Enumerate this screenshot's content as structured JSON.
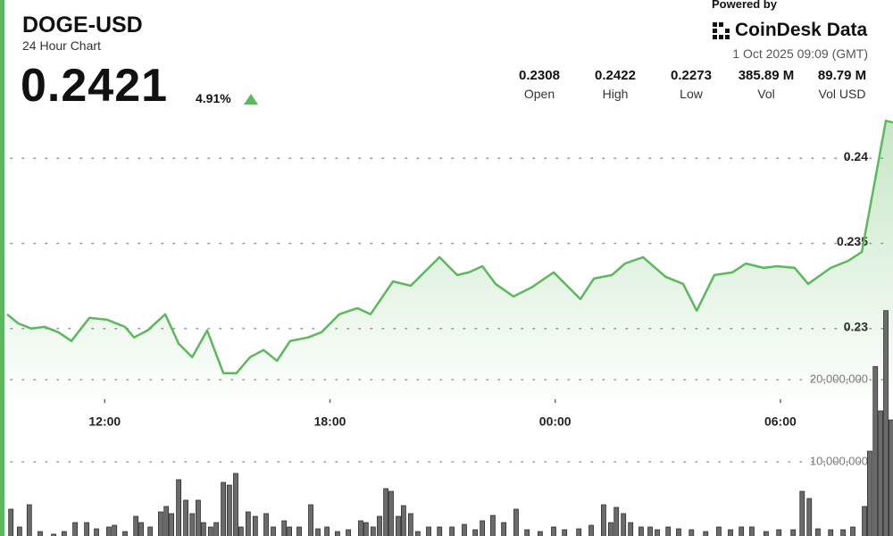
{
  "header": {
    "symbol": "DOGE-USD",
    "subtitle": "24 Hour Chart",
    "price": "0.2421",
    "change": "4.91%",
    "powered_by": "Powered by",
    "brand": "CoinDesk Data",
    "timestamp": "1 Oct 2025 09:09 (GMT)",
    "stats": [
      {
        "value": "0.2308",
        "label": "Open"
      },
      {
        "value": "0.2422",
        "label": "High"
      },
      {
        "value": "0.2273",
        "label": "Low"
      },
      {
        "value": "385.89 M",
        "label": "Vol"
      },
      {
        "value": "89.79 M",
        "label": "Vol USD"
      }
    ]
  },
  "chart_data": [
    {
      "type": "area",
      "color": "#5cb85c",
      "grid": true,
      "xlim": [
        9.4,
        33.0
      ],
      "xticks": [
        {
          "value": 12,
          "label": "12:00"
        },
        {
          "value": 18,
          "label": "18:00"
        },
        {
          "value": 24,
          "label": "00:00"
        },
        {
          "value": 30,
          "label": "06:00"
        }
      ],
      "ylim": [
        0.226,
        0.243
      ],
      "yticks": [
        0.23,
        0.235,
        0.24
      ],
      "x": [
        9.4,
        9.69,
        10.04,
        10.4,
        10.76,
        11.11,
        11.59,
        12.06,
        12.54,
        12.78,
        13.14,
        13.61,
        13.97,
        14.33,
        14.73,
        15.16,
        15.51,
        15.87,
        16.23,
        16.59,
        16.94,
        17.42,
        17.78,
        18.25,
        18.73,
        19.08,
        19.68,
        20.15,
        20.51,
        20.92,
        21.39,
        21.7,
        22.06,
        22.41,
        22.89,
        23.37,
        23.96,
        24.67,
        25.03,
        25.51,
        25.86,
        26.34,
        26.94,
        27.41,
        27.77,
        28.24,
        28.72,
        29.08,
        29.55,
        29.91,
        30.38,
        30.74,
        31.34,
        31.81,
        32.17,
        32.53,
        32.81,
        33.0
      ],
      "values": [
        0.23084,
        0.23031,
        0.23,
        0.2301,
        0.22979,
        0.22927,
        0.23063,
        0.23052,
        0.2301,
        0.22948,
        0.22989,
        0.23084,
        0.22911,
        0.22832,
        0.22989,
        0.22738,
        0.22738,
        0.22832,
        0.22874,
        0.22811,
        0.22927,
        0.22948,
        0.22979,
        0.23084,
        0.2312,
        0.23084,
        0.23277,
        0.23251,
        0.2333,
        0.23419,
        0.23314,
        0.2333,
        0.23366,
        0.23262,
        0.23188,
        0.23241,
        0.2333,
        0.23173,
        0.23293,
        0.23314,
        0.23382,
        0.23419,
        0.23304,
        0.23262,
        0.23105,
        0.23314,
        0.2333,
        0.23382,
        0.23356,
        0.23366,
        0.23356,
        0.23262,
        0.23356,
        0.23398,
        0.2345,
        0.2388,
        0.2422,
        0.2421
      ]
    },
    {
      "type": "bar",
      "color": "#6b6b6b",
      "grid": true,
      "ylim": [
        0,
        30000000
      ],
      "yticks": [
        {
          "value": 10000000,
          "label": "10,000,000"
        },
        {
          "value": 20000000,
          "label": "20,000,000"
        }
      ],
      "x": [
        9.5,
        9.73,
        9.99,
        10.28,
        10.64,
        10.92,
        11.21,
        11.52,
        11.78,
        12.11,
        12.26,
        12.54,
        12.83,
        12.97,
        13.21,
        13.49,
        13.64,
        13.78,
        13.97,
        14.16,
        14.33,
        14.49,
        14.63,
        14.82,
        14.97,
        15.16,
        15.32,
        15.49,
        15.63,
        15.82,
        16.01,
        16.3,
        16.49,
        16.78,
        16.92,
        17.18,
        17.49,
        17.68,
        17.92,
        18.2,
        18.49,
        18.82,
        18.96,
        19.15,
        19.32,
        19.49,
        19.63,
        19.82,
        19.96,
        20.15,
        20.34,
        20.63,
        20.92,
        21.25,
        21.58,
        21.87,
        22.06,
        22.34,
        22.63,
        22.96,
        23.25,
        23.6,
        23.96,
        24.25,
        24.63,
        24.96,
        25.29,
        25.48,
        25.63,
        25.82,
        26.01,
        26.29,
        26.53,
        26.72,
        27.01,
        27.29,
        27.63,
        28.01,
        28.36,
        28.67,
        28.96,
        29.24,
        29.62,
        29.96,
        30.34,
        30.58,
        30.77,
        31.0,
        31.34,
        31.67,
        31.93,
        32.24,
        32.38,
        32.53,
        32.67,
        32.81,
        32.95
      ],
      "values": [
        4240000,
        2070000,
        4780000,
        1520000,
        1200000,
        1520000,
        2610000,
        2610000,
        1850000,
        2070000,
        2280000,
        1520000,
        3370000,
        2610000,
        2070000,
        3910000,
        4570000,
        3700000,
        7830000,
        5330000,
        3700000,
        5330000,
        2610000,
        2070000,
        2610000,
        7500000,
        7170000,
        8590000,
        2070000,
        3910000,
        3370000,
        3700000,
        2070000,
        2830000,
        2070000,
        2070000,
        4780000,
        1850000,
        2070000,
        1520000,
        1740000,
        2830000,
        2610000,
        2070000,
        3370000,
        6740000,
        6410000,
        3370000,
        4670000,
        3700000,
        1520000,
        2070000,
        2070000,
        2070000,
        2390000,
        1740000,
        2830000,
        3480000,
        2610000,
        4240000,
        1740000,
        1520000,
        2070000,
        1740000,
        1850000,
        2280000,
        4780000,
        2610000,
        4460000,
        3700000,
        2610000,
        2070000,
        2070000,
        1740000,
        2070000,
        1850000,
        1740000,
        1520000,
        2070000,
        1740000,
        2070000,
        2070000,
        1520000,
        1740000,
        1740000,
        6410000,
        5540000,
        1850000,
        1740000,
        1740000,
        2070000,
        4570000,
        11300000,
        21600000,
        16200000,
        28400000,
        15100000
      ]
    }
  ]
}
